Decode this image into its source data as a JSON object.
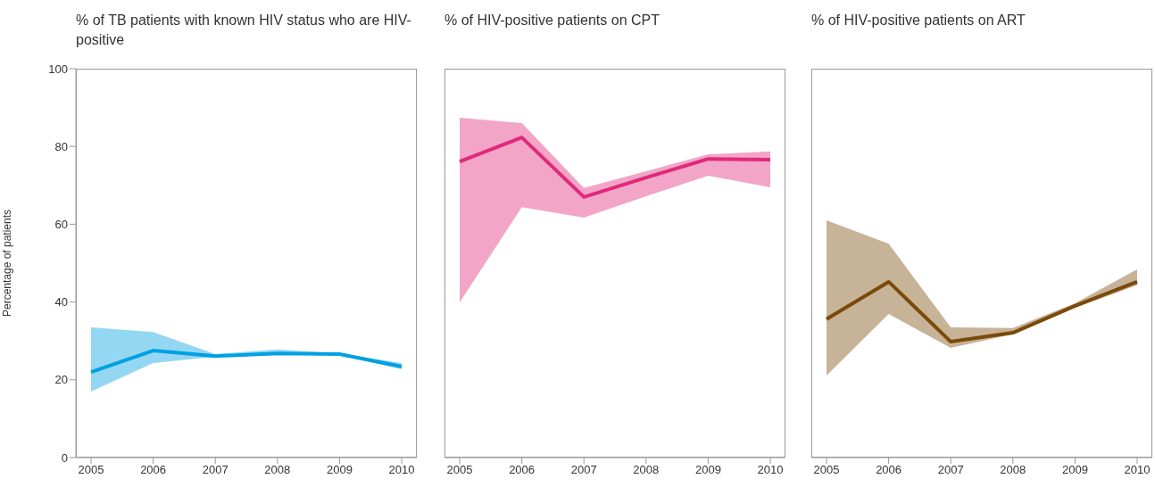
{
  "chart_data": [
    {
      "type": "line",
      "title": "% of TB patients with known HIV status who are HIV-positive",
      "ylabel": "Percentage of patients",
      "categories": [
        "2005",
        "2006",
        "2007",
        "2008",
        "2009",
        "2010"
      ],
      "ylim": [
        0,
        100
      ],
      "yticks": [
        0,
        20,
        40,
        60,
        80,
        100
      ],
      "marker": "none",
      "series": [
        {
          "color": "#00a0e3",
          "values": [
            22.0,
            27.5,
            26.1,
            26.8,
            26.6,
            23.4
          ],
          "lower": [
            17.0,
            24.3,
            25.9,
            26.4,
            26.4,
            22.7
          ],
          "upper": [
            33.5,
            32.3,
            26.6,
            27.8,
            26.8,
            24.3
          ]
        }
      ]
    },
    {
      "type": "line",
      "title": "% of HIV-positive patients on CPT",
      "categories": [
        "2005",
        "2006",
        "2007",
        "2008",
        "2009",
        "2010"
      ],
      "ylim": [
        0,
        100
      ],
      "tick_labels": "x",
      "marker": "none",
      "series": [
        {
          "color": "#e0297a",
          "values": [
            76.1,
            82.3,
            67.0,
            72.0,
            76.8,
            76.6
          ],
          "lower": [
            39.9,
            64.4,
            61.7,
            67.2,
            72.5,
            69.5
          ],
          "upper": [
            87.4,
            86.0,
            69.3,
            73.6,
            78.0,
            78.7
          ]
        }
      ]
    },
    {
      "type": "line",
      "title": "% of HIV-positive patients on ART",
      "categories": [
        "2005",
        "2006",
        "2007",
        "2008",
        "2009",
        "2010"
      ],
      "ylim": [
        0,
        100
      ],
      "tick_labels": "x",
      "marker": "none",
      "series": [
        {
          "color": "#7a4a0a",
          "values": [
            35.6,
            45.2,
            29.8,
            32.1,
            39.0,
            45.2
          ],
          "lower": [
            21.1,
            36.9,
            28.2,
            31.7,
            38.5,
            44.3
          ],
          "upper": [
            61.0,
            55.0,
            33.5,
            33.3,
            39.7,
            48.4
          ]
        }
      ]
    }
  ]
}
